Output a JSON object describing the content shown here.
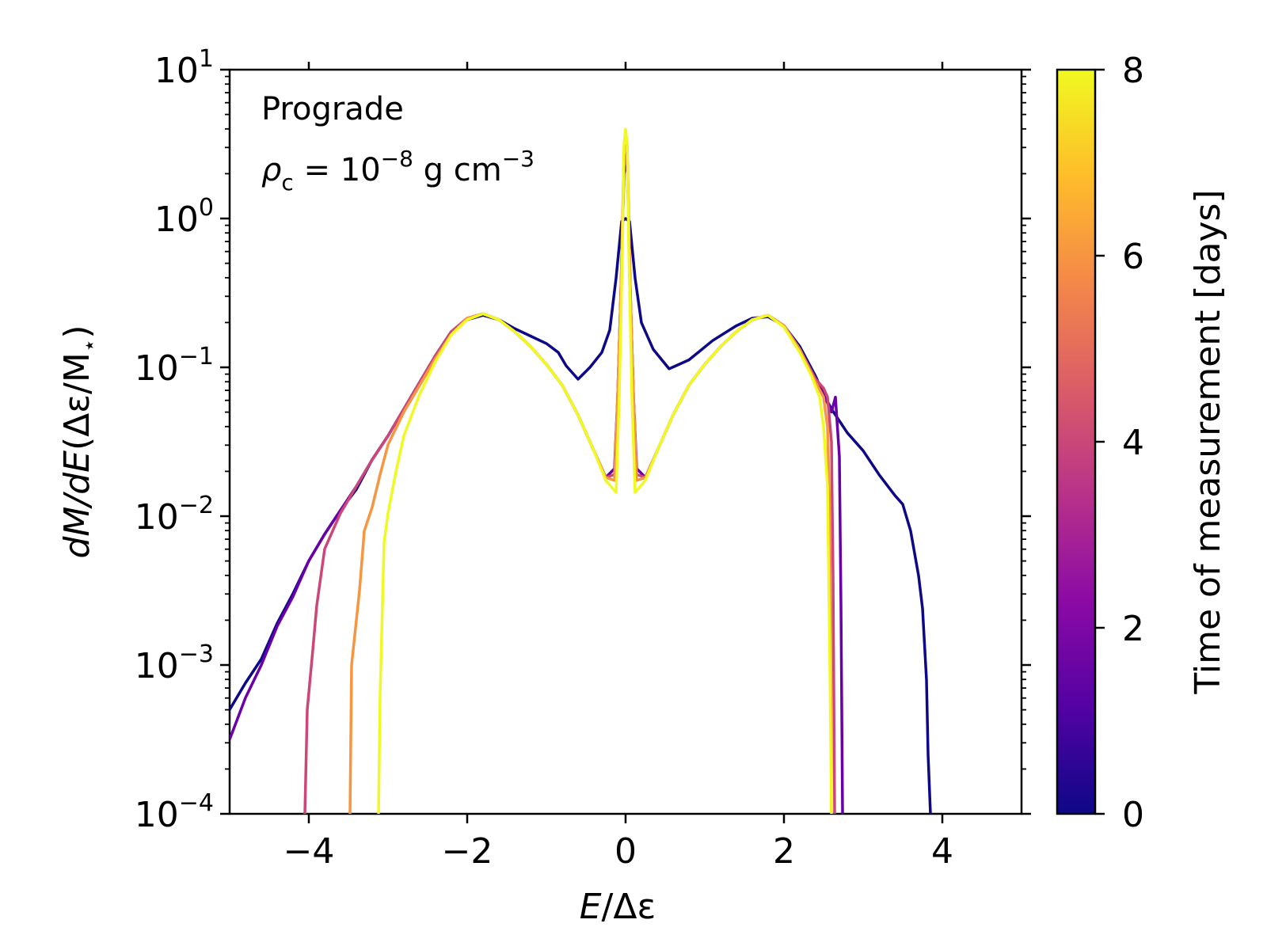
{
  "chart_data": {
    "type": "line",
    "xlabel_main": "E",
    "xlabel_rest": "/Δε",
    "ylabel_main": "dM/dE",
    "ylabel_rest": "(Δε/M",
    "ylabel_sub": "⋆",
    "ylabel_close": ")",
    "xlim": [
      -5,
      5
    ],
    "ylim_log10": [
      -4,
      1
    ],
    "yscale": "log",
    "x_ticks": [
      -4,
      -2,
      0,
      2,
      4
    ],
    "x_tick_labels": [
      "−4",
      "−2",
      "0",
      "2",
      "4"
    ],
    "y_ticks_exp": [
      1,
      0,
      -1,
      -2,
      -3,
      -4
    ],
    "y_tick_base": "10",
    "y_tick_exps": [
      "1",
      "0",
      "−1",
      "−2",
      "−3",
      "−4"
    ],
    "annotation_line1": "Prograde",
    "annotation_rho": "ρ",
    "annotation_rho_sub": "c",
    "annotation_eq": " = 10",
    "annotation_exp": "−8",
    "annotation_unit": " g cm",
    "annotation_unit_exp": "−3",
    "colorbar": {
      "label": "Time of measurement [days]",
      "range": [
        0,
        8
      ],
      "ticks": [
        0,
        2,
        4,
        6,
        8
      ],
      "tick_labels": [
        "0",
        "2",
        "4",
        "6",
        "8"
      ],
      "colormap": [
        "#0d0887",
        "#5302a3",
        "#8b0aa5",
        "#b83289",
        "#db5c68",
        "#f48849",
        "#febd2a",
        "#f0f921"
      ]
    },
    "series": [
      {
        "name": "t ≈ 0 days",
        "color": "#0d0887",
        "points": [
          [
            -5,
            -3.3
          ],
          [
            -4.8,
            -3.12
          ],
          [
            -4.6,
            -2.96
          ],
          [
            -4.4,
            -2.72
          ],
          [
            -4.2,
            -2.52
          ],
          [
            -4,
            -2.3
          ],
          [
            -3.8,
            -2.12
          ],
          [
            -3.6,
            -1.96
          ],
          [
            -3.4,
            -1.82
          ],
          [
            -3.2,
            -1.62
          ],
          [
            -3,
            -1.46
          ],
          [
            -2.8,
            -1.28
          ],
          [
            -2.6,
            -1.1
          ],
          [
            -2.4,
            -0.92
          ],
          [
            -2.2,
            -0.76
          ],
          [
            -2,
            -0.68
          ],
          [
            -1.8,
            -0.65
          ],
          [
            -1.6,
            -0.68
          ],
          [
            -1.4,
            -0.74
          ],
          [
            -1.2,
            -0.79
          ],
          [
            -1,
            -0.84
          ],
          [
            -0.85,
            -0.9
          ],
          [
            -0.75,
            -0.99
          ],
          [
            -0.6,
            -1.08
          ],
          [
            -0.45,
            -1.0
          ],
          [
            -0.3,
            -0.9
          ],
          [
            -0.2,
            -0.75
          ],
          [
            -0.12,
            -0.4
          ],
          [
            -0.05,
            -0.02
          ],
          [
            0,
            0.0
          ],
          [
            0.05,
            -0.02
          ],
          [
            0.12,
            -0.4
          ],
          [
            0.2,
            -0.7
          ],
          [
            0.35,
            -0.88
          ],
          [
            0.55,
            -1.01
          ],
          [
            0.8,
            -0.95
          ],
          [
            1.1,
            -0.82
          ],
          [
            1.4,
            -0.72
          ],
          [
            1.6,
            -0.67
          ],
          [
            1.8,
            -0.66
          ],
          [
            2,
            -0.72
          ],
          [
            2.2,
            -0.86
          ],
          [
            2.4,
            -1.06
          ],
          [
            2.5,
            -1.18
          ],
          [
            2.6,
            -1.28
          ],
          [
            2.8,
            -1.44
          ],
          [
            3,
            -1.56
          ],
          [
            3.2,
            -1.72
          ],
          [
            3.4,
            -1.86
          ],
          [
            3.5,
            -1.92
          ],
          [
            3.6,
            -2.1
          ],
          [
            3.7,
            -2.4
          ],
          [
            3.75,
            -2.62
          ],
          [
            3.8,
            -3.1
          ],
          [
            3.82,
            -3.6
          ],
          [
            3.85,
            -4.0
          ]
        ]
      },
      {
        "name": "t ≈ 1.5 days",
        "color": "#6a00a8",
        "points": [
          [
            -5,
            -3.5
          ],
          [
            -4.8,
            -3.22
          ],
          [
            -4.6,
            -3.0
          ],
          [
            -4.4,
            -2.74
          ],
          [
            -4.2,
            -2.54
          ],
          [
            -4,
            -2.3
          ],
          [
            -3.8,
            -2.12
          ],
          [
            -3.6,
            -1.96
          ],
          [
            -3.4,
            -1.8
          ],
          [
            -3.2,
            -1.62
          ],
          [
            -3,
            -1.46
          ],
          [
            -2.8,
            -1.28
          ],
          [
            -2.6,
            -1.1
          ],
          [
            -2.4,
            -0.92
          ],
          [
            -2.2,
            -0.76
          ],
          [
            -2,
            -0.67
          ],
          [
            -1.8,
            -0.64
          ],
          [
            -1.6,
            -0.68
          ],
          [
            -1.4,
            -0.76
          ],
          [
            -1.2,
            -0.86
          ],
          [
            -1,
            -0.98
          ],
          [
            -0.8,
            -1.12
          ],
          [
            -0.6,
            -1.32
          ],
          [
            -0.4,
            -1.56
          ],
          [
            -0.25,
            -1.74
          ],
          [
            -0.14,
            -1.68
          ],
          [
            -0.1,
            -1.2
          ],
          [
            -0.06,
            -0.5
          ],
          [
            -0.02,
            0.3
          ],
          [
            0.02,
            0.4
          ],
          [
            0.06,
            -0.5
          ],
          [
            0.1,
            -1.2
          ],
          [
            0.14,
            -1.68
          ],
          [
            0.25,
            -1.74
          ],
          [
            0.4,
            -1.56
          ],
          [
            0.6,
            -1.32
          ],
          [
            0.8,
            -1.12
          ],
          [
            1,
            -0.98
          ],
          [
            1.2,
            -0.86
          ],
          [
            1.4,
            -0.76
          ],
          [
            1.6,
            -0.68
          ],
          [
            1.8,
            -0.65
          ],
          [
            2,
            -0.72
          ],
          [
            2.2,
            -0.88
          ],
          [
            2.4,
            -1.08
          ],
          [
            2.5,
            -1.18
          ],
          [
            2.6,
            -1.3
          ],
          [
            2.65,
            -1.2
          ],
          [
            2.7,
            -1.6
          ],
          [
            2.72,
            -2.6
          ],
          [
            2.74,
            -4.0
          ]
        ]
      },
      {
        "name": "t ≈ 4 days",
        "color": "#cc4778",
        "points": [
          [
            -4.05,
            -4.0
          ],
          [
            -4.02,
            -3.3
          ],
          [
            -3.95,
            -2.9
          ],
          [
            -3.9,
            -2.6
          ],
          [
            -3.8,
            -2.22
          ],
          [
            -3.6,
            -1.98
          ],
          [
            -3.4,
            -1.8
          ],
          [
            -3.2,
            -1.62
          ],
          [
            -3,
            -1.46
          ],
          [
            -2.8,
            -1.28
          ],
          [
            -2.6,
            -1.1
          ],
          [
            -2.4,
            -0.92
          ],
          [
            -2.2,
            -0.76
          ],
          [
            -2,
            -0.67
          ],
          [
            -1.8,
            -0.64
          ],
          [
            -1.6,
            -0.68
          ],
          [
            -1.4,
            -0.76
          ],
          [
            -1.2,
            -0.86
          ],
          [
            -1,
            -0.98
          ],
          [
            -0.8,
            -1.12
          ],
          [
            -0.6,
            -1.32
          ],
          [
            -0.4,
            -1.56
          ],
          [
            -0.25,
            -1.74
          ],
          [
            -0.14,
            -1.72
          ],
          [
            -0.1,
            -1.2
          ],
          [
            -0.06,
            -0.5
          ],
          [
            -0.02,
            0.35
          ],
          [
            0.02,
            0.45
          ],
          [
            0.06,
            -0.5
          ],
          [
            0.1,
            -1.2
          ],
          [
            0.14,
            -1.72
          ],
          [
            0.25,
            -1.74
          ],
          [
            0.4,
            -1.56
          ],
          [
            0.6,
            -1.32
          ],
          [
            0.8,
            -1.12
          ],
          [
            1,
            -0.98
          ],
          [
            1.2,
            -0.86
          ],
          [
            1.4,
            -0.76
          ],
          [
            1.6,
            -0.68
          ],
          [
            1.8,
            -0.65
          ],
          [
            2,
            -0.72
          ],
          [
            2.2,
            -0.88
          ],
          [
            2.4,
            -1.08
          ],
          [
            2.5,
            -1.14
          ],
          [
            2.55,
            -1.2
          ],
          [
            2.6,
            -1.5
          ],
          [
            2.62,
            -2.4
          ],
          [
            2.64,
            -4.0
          ]
        ]
      },
      {
        "name": "t ≈ 6 days",
        "color": "#f89540",
        "points": [
          [
            -3.48,
            -4.0
          ],
          [
            -3.46,
            -3.0
          ],
          [
            -3.42,
            -2.8
          ],
          [
            -3.36,
            -2.5
          ],
          [
            -3.3,
            -2.1
          ],
          [
            -3.2,
            -1.94
          ],
          [
            -3.1,
            -1.72
          ],
          [
            -3,
            -1.52
          ],
          [
            -2.8,
            -1.3
          ],
          [
            -2.6,
            -1.12
          ],
          [
            -2.4,
            -0.94
          ],
          [
            -2.2,
            -0.78
          ],
          [
            -2,
            -0.67
          ],
          [
            -1.8,
            -0.64
          ],
          [
            -1.6,
            -0.68
          ],
          [
            -1.4,
            -0.76
          ],
          [
            -1.2,
            -0.86
          ],
          [
            -1,
            -0.98
          ],
          [
            -0.8,
            -1.12
          ],
          [
            -0.6,
            -1.32
          ],
          [
            -0.4,
            -1.56
          ],
          [
            -0.25,
            -1.74
          ],
          [
            -0.14,
            -1.76
          ],
          [
            -0.1,
            -1.2
          ],
          [
            -0.06,
            -0.5
          ],
          [
            -0.02,
            0.45
          ],
          [
            0.02,
            0.5
          ],
          [
            0.06,
            -0.5
          ],
          [
            0.1,
            -1.2
          ],
          [
            0.14,
            -1.76
          ],
          [
            0.25,
            -1.74
          ],
          [
            0.4,
            -1.56
          ],
          [
            0.6,
            -1.32
          ],
          [
            0.8,
            -1.12
          ],
          [
            1,
            -0.98
          ],
          [
            1.2,
            -0.86
          ],
          [
            1.4,
            -0.76
          ],
          [
            1.6,
            -0.68
          ],
          [
            1.8,
            -0.65
          ],
          [
            2,
            -0.72
          ],
          [
            2.2,
            -0.88
          ],
          [
            2.4,
            -1.1
          ],
          [
            2.5,
            -1.2
          ],
          [
            2.55,
            -1.4
          ],
          [
            2.58,
            -2.0
          ],
          [
            2.6,
            -4.0
          ]
        ]
      },
      {
        "name": "t ≈ 8 days",
        "color": "#f0f921",
        "points": [
          [
            -3.12,
            -4.0
          ],
          [
            -3.1,
            -3.2
          ],
          [
            -3.05,
            -2.18
          ],
          [
            -3.0,
            -1.98
          ],
          [
            -2.9,
            -1.7
          ],
          [
            -2.8,
            -1.46
          ],
          [
            -2.6,
            -1.18
          ],
          [
            -2.4,
            -0.96
          ],
          [
            -2.2,
            -0.78
          ],
          [
            -2,
            -0.68
          ],
          [
            -1.8,
            -0.64
          ],
          [
            -1.6,
            -0.68
          ],
          [
            -1.4,
            -0.76
          ],
          [
            -1.2,
            -0.86
          ],
          [
            -1,
            -0.98
          ],
          [
            -0.8,
            -1.12
          ],
          [
            -0.6,
            -1.32
          ],
          [
            -0.4,
            -1.56
          ],
          [
            -0.25,
            -1.76
          ],
          [
            -0.12,
            -1.84
          ],
          [
            -0.08,
            -1.2
          ],
          [
            -0.04,
            -0.2
          ],
          [
            -0.02,
            0.5
          ],
          [
            0,
            0.6
          ],
          [
            0.02,
            0.5
          ],
          [
            0.04,
            -0.2
          ],
          [
            0.08,
            -1.2
          ],
          [
            0.12,
            -1.84
          ],
          [
            0.25,
            -1.76
          ],
          [
            0.4,
            -1.56
          ],
          [
            0.6,
            -1.32
          ],
          [
            0.8,
            -1.12
          ],
          [
            1,
            -0.98
          ],
          [
            1.2,
            -0.86
          ],
          [
            1.4,
            -0.76
          ],
          [
            1.6,
            -0.68
          ],
          [
            1.8,
            -0.65
          ],
          [
            2,
            -0.73
          ],
          [
            2.2,
            -0.9
          ],
          [
            2.35,
            -1.06
          ],
          [
            2.45,
            -1.2
          ],
          [
            2.5,
            -1.4
          ],
          [
            2.55,
            -1.8
          ],
          [
            2.58,
            -3.0
          ],
          [
            2.6,
            -4.0
          ]
        ]
      }
    ]
  }
}
